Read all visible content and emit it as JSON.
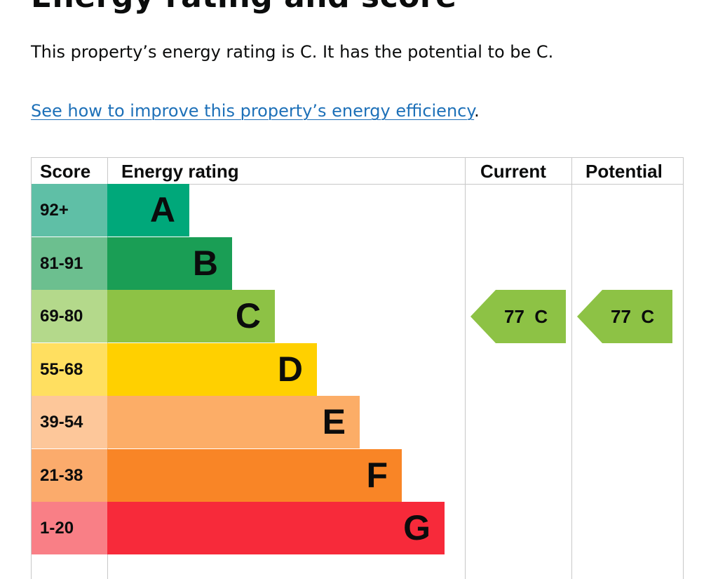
{
  "page": {
    "title": "Energy rating and score",
    "summary": "This property’s energy rating is C. It has the potential to be C.",
    "improve_link": "See how to improve this property’s energy efficiency",
    "improve_suffix": "."
  },
  "table": {
    "headers": {
      "score": "Score",
      "rating": "Energy rating",
      "current": "Current",
      "potential": "Potential"
    },
    "bands": [
      {
        "score": "92+",
        "letter": "A",
        "bar_color": "#00a87a",
        "score_bg": "#5fbfa6"
      },
      {
        "score": "81-91",
        "letter": "B",
        "bar_color": "#1a9e55",
        "score_bg": "#6cbf8f"
      },
      {
        "score": "69-80",
        "letter": "C",
        "bar_color": "#8dc245",
        "score_bg": "#b4d98b"
      },
      {
        "score": "55-68",
        "letter": "D",
        "bar_color": "#ffd000",
        "score_bg": "#ffdf60"
      },
      {
        "score": "39-54",
        "letter": "E",
        "bar_color": "#fcad67",
        "score_bg": "#fdc79a"
      },
      {
        "score": "21-38",
        "letter": "F",
        "bar_color": "#f98526",
        "score_bg": "#fbab6c"
      },
      {
        "score": "1-20",
        "letter": "G",
        "bar_color": "#f72a3a",
        "score_bg": "#f97f86"
      }
    ],
    "current": {
      "score": "77",
      "band": "C",
      "color": "#8dc245"
    },
    "potential": {
      "score": "77",
      "band": "C",
      "color": "#8dc245"
    }
  }
}
